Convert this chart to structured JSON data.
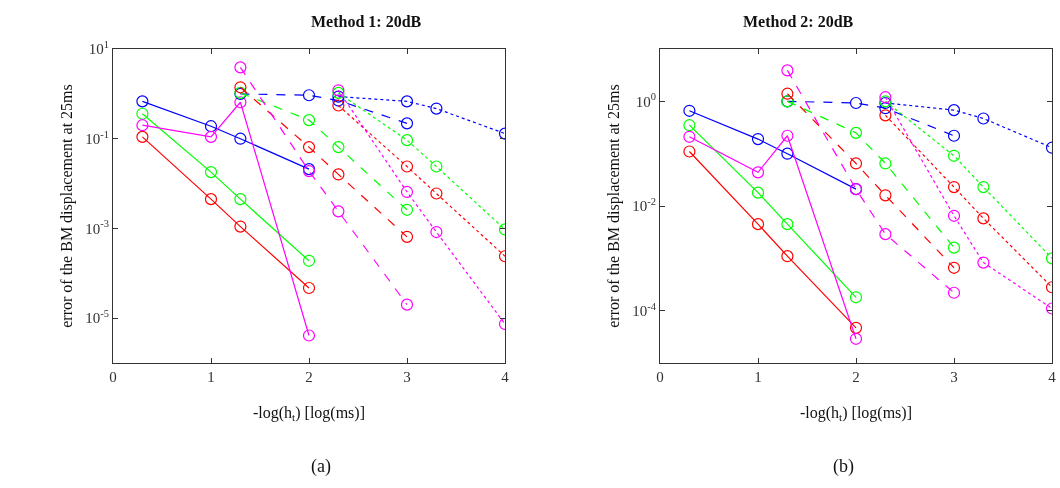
{
  "chart_data": [
    {
      "type": "line",
      "title": "Method 1: 20dB",
      "xlabel": "-log(h$_{t}$) [log(ms)]",
      "ylabel": "error of the BM displacement at 25ms",
      "annotations": [
        "(a)"
      ],
      "log": "y",
      "marker": "circle",
      "xlim": [
        0,
        4
      ],
      "xticks": [
        0,
        1,
        2,
        3,
        4
      ],
      "ylim": [
        1e-06,
        10
      ],
      "yticks": [
        {
          "value": 10,
          "label": "10$^{1}$"
        },
        {
          "value": 0.1,
          "label": "10$^{-1}$"
        },
        {
          "value": 0.001,
          "label": "10$^{-3}$"
        },
        {
          "value": 1e-05,
          "label": "10$^{-5}$"
        }
      ],
      "series": [
        {
          "color": "#0000ff",
          "line_style": "solid",
          "x": [
            0.3,
            1,
            1.3,
            2
          ],
          "values": [
            0.68,
            0.19,
            0.1,
            0.021
          ]
        },
        {
          "color": "#00ff00",
          "line_style": "solid",
          "x": [
            0.3,
            1,
            1.3,
            2
          ],
          "values": [
            0.36,
            0.018,
            0.0045,
            0.00019
          ]
        },
        {
          "color": "#ff0000",
          "line_style": "solid",
          "x": [
            0.3,
            1,
            1.3,
            2
          ],
          "values": [
            0.11,
            0.0045,
            0.0011,
            4.7e-05
          ]
        },
        {
          "color": "#ff00ff",
          "line_style": "solid",
          "x": [
            0.3,
            1,
            1.3,
            2
          ],
          "values": [
            0.2,
            0.11,
            0.65,
            4.1e-06
          ]
        },
        {
          "color": "#0000ff",
          "line_style": "dashed",
          "x": [
            1.3,
            2,
            2.3,
            3
          ],
          "values": [
            1.0,
            0.93,
            0.71,
            0.22
          ]
        },
        {
          "color": "#00ff00",
          "line_style": "dashed",
          "x": [
            1.3,
            2,
            2.3,
            3
          ],
          "values": [
            1.05,
            0.26,
            0.065,
            0.0026
          ]
        },
        {
          "color": "#ff0000",
          "line_style": "dashed",
          "x": [
            1.3,
            2,
            2.3,
            3
          ],
          "values": [
            1.4,
            0.065,
            0.016,
            0.00065
          ]
        },
        {
          "color": "#ff00ff",
          "line_style": "dashed",
          "x": [
            1.3,
            2,
            2.3,
            3
          ],
          "values": [
            3.9,
            0.019,
            0.0024,
            2e-05
          ]
        },
        {
          "color": "#0000ff",
          "line_style": "dotted",
          "x": [
            2.3,
            3,
            3.3,
            4
          ],
          "values": [
            0.87,
            0.68,
            0.47,
            0.13
          ]
        },
        {
          "color": "#00ff00",
          "line_style": "dotted",
          "x": [
            2.3,
            3,
            3.3,
            4
          ],
          "values": [
            1.05,
            0.093,
            0.024,
            0.00095
          ]
        },
        {
          "color": "#ff0000",
          "line_style": "dotted",
          "x": [
            2.3,
            3,
            3.3,
            4
          ],
          "values": [
            0.55,
            0.024,
            0.006,
            0.00024
          ]
        },
        {
          "color": "#ff00ff",
          "line_style": "dotted",
          "x": [
            2.3,
            3,
            3.3,
            4
          ],
          "values": [
            1.2,
            0.0065,
            0.00083,
            7.4e-06
          ]
        }
      ]
    },
    {
      "type": "line",
      "title": "Method 2: 20dB",
      "xlabel": "-log(h$_{t}$) [log(ms)]",
      "ylabel": "error of the BM displacement at 25ms",
      "annotations": [
        "(b)"
      ],
      "log": "y",
      "marker": "circle",
      "xlim": [
        0,
        4
      ],
      "xticks": [
        0,
        1,
        2,
        3,
        4
      ],
      "ylim": [
        1e-05,
        10
      ],
      "yticks": [
        {
          "value": 1,
          "label": "10$^{0}$"
        },
        {
          "value": 0.01,
          "label": "10$^{-2}$"
        },
        {
          "value": 0.0001,
          "label": "10$^{-4}$"
        }
      ],
      "series": [
        {
          "color": "#0000ff",
          "line_style": "solid",
          "x": [
            0.3,
            1,
            1.3,
            2
          ],
          "values": [
            0.66,
            0.19,
            0.1,
            0.021
          ]
        },
        {
          "color": "#00ff00",
          "line_style": "solid",
          "x": [
            0.3,
            1,
            1.3,
            2
          ],
          "values": [
            0.35,
            0.018,
            0.0045,
            0.00018
          ]
        },
        {
          "color": "#ff0000",
          "line_style": "solid",
          "x": [
            0.3,
            1,
            1.3,
            2
          ],
          "values": [
            0.11,
            0.0045,
            0.0011,
            4.7e-05
          ]
        },
        {
          "color": "#ff00ff",
          "line_style": "solid",
          "x": [
            0.3,
            1,
            1.3,
            2
          ],
          "values": [
            0.21,
            0.044,
            0.22,
            2.9e-05
          ]
        },
        {
          "color": "#0000ff",
          "line_style": "dashed",
          "x": [
            1.3,
            2,
            2.3,
            3
          ],
          "values": [
            1.0,
            0.93,
            0.74,
            0.22
          ]
        },
        {
          "color": "#00ff00",
          "line_style": "dashed",
          "x": [
            1.3,
            2,
            2.3,
            3
          ],
          "values": [
            1.0,
            0.25,
            0.065,
            0.0016
          ]
        },
        {
          "color": "#ff0000",
          "line_style": "dashed",
          "x": [
            1.3,
            2,
            2.3,
            3
          ],
          "values": [
            1.4,
            0.065,
            0.016,
            0.00066
          ]
        },
        {
          "color": "#ff00ff",
          "line_style": "dashed",
          "x": [
            1.3,
            2,
            2.3,
            3
          ],
          "values": [
            3.9,
            0.021,
            0.0029,
            0.00022
          ]
        },
        {
          "color": "#0000ff",
          "line_style": "dotted",
          "x": [
            2.3,
            3,
            3.3,
            4
          ],
          "values": [
            0.93,
            0.68,
            0.47,
            0.13
          ]
        },
        {
          "color": "#00ff00",
          "line_style": "dotted",
          "x": [
            2.3,
            3,
            3.3,
            4
          ],
          "values": [
            1.0,
            0.091,
            0.023,
            0.001
          ]
        },
        {
          "color": "#ff0000",
          "line_style": "dotted",
          "x": [
            2.3,
            3,
            3.3,
            4
          ],
          "values": [
            0.54,
            0.023,
            0.0058,
            0.00028
          ]
        },
        {
          "color": "#ff00ff",
          "line_style": "dotted",
          "x": [
            2.3,
            3,
            3.3,
            4
          ],
          "values": [
            1.2,
            0.0065,
            0.00083,
            0.00011
          ]
        }
      ]
    }
  ]
}
